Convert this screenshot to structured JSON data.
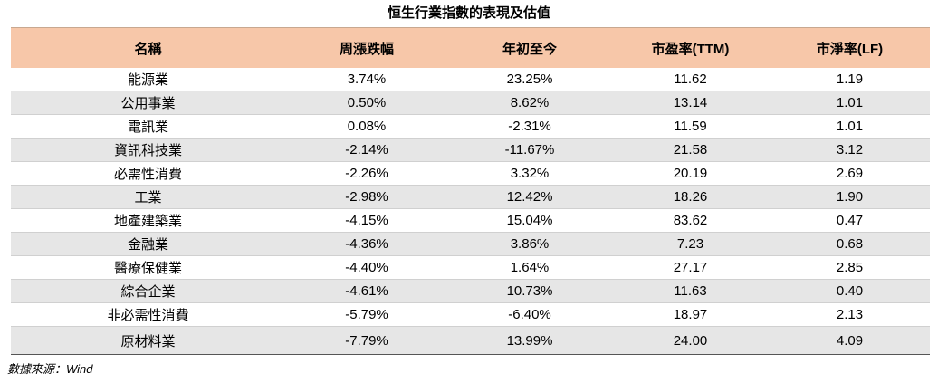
{
  "title": "恒生行業指數的表現及估值",
  "table": {
    "header": [
      "名稱",
      "周漲跌幅",
      "年初至今",
      "市盈率(TTM)",
      "市淨率(LF)"
    ],
    "rows": [
      [
        "能源業",
        "3.74%",
        "23.25%",
        "11.62",
        "1.19"
      ],
      [
        "公用事業",
        "0.50%",
        "8.62%",
        "13.14",
        "1.01"
      ],
      [
        "電訊業",
        "0.08%",
        "-2.31%",
        "11.59",
        "1.01"
      ],
      [
        "資訊科技業",
        "-2.14%",
        "-11.67%",
        "21.58",
        "3.12"
      ],
      [
        "必需性消費",
        "-2.26%",
        "3.32%",
        "20.19",
        "2.69"
      ],
      [
        "工業",
        "-2.98%",
        "12.42%",
        "18.26",
        "1.90"
      ],
      [
        "地產建築業",
        "-4.15%",
        "15.04%",
        "83.62",
        "0.47"
      ],
      [
        "金融業",
        "-4.36%",
        "3.86%",
        "7.23",
        "0.68"
      ],
      [
        "醫療保健業",
        "-4.40%",
        "1.64%",
        "27.17",
        "2.85"
      ],
      [
        "綜合企業",
        "-4.61%",
        "10.73%",
        "11.63",
        "0.40"
      ],
      [
        "非必需性消費",
        "-5.79%",
        "-6.40%",
        "18.97",
        "2.13"
      ],
      [
        "原材料業",
        "-7.79%",
        "13.99%",
        "24.00",
        "4.09"
      ]
    ]
  },
  "source": "數據來源：Wind"
}
